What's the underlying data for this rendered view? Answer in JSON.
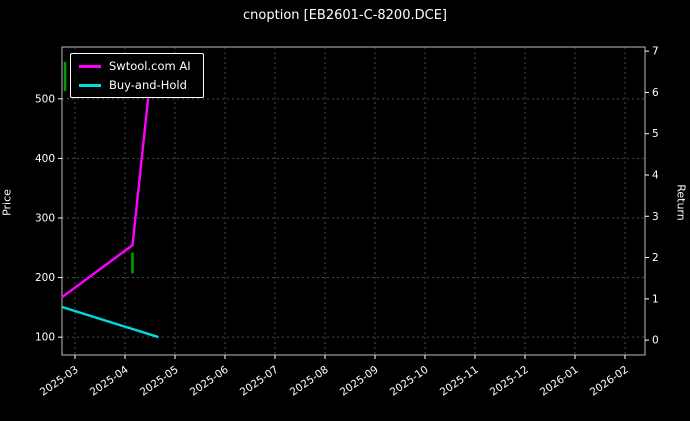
{
  "chart_data": {
    "type": "line",
    "title": "cnoption [EB2601-C-8200.DCE]",
    "ylabel_left": "Price",
    "ylabel_right": "Return",
    "x_tick_labels": [
      "2025-03",
      "2025-04",
      "2025-05",
      "2025-06",
      "2025-07",
      "2025-08",
      "2025-09",
      "2025-10",
      "2025-11",
      "2025-12",
      "2026-01",
      "2026-02"
    ],
    "xlim": [
      -0.26,
      11.4
    ],
    "price_ticks": [
      100,
      200,
      300,
      400,
      500
    ],
    "price_ylim": [
      70,
      587
    ],
    "return_ticks": [
      0,
      1,
      2,
      3,
      4,
      5,
      6,
      7
    ],
    "return_ylim": [
      -0.36,
      7.1
    ],
    "grid_color": "#4a4a4a",
    "series": [
      {
        "name": "Swtool.com AI",
        "color": "#ff00ff",
        "axis": "return",
        "x": [
          -0.25,
          1.15,
          1.55
        ],
        "y": [
          1.05,
          2.3,
          6.85
        ]
      },
      {
        "name": "Buy-and-Hold",
        "color": "#00dddd",
        "axis": "return",
        "x": [
          -0.25,
          1.65
        ],
        "y": [
          0.8,
          0.08
        ]
      }
    ],
    "price_bars": [
      {
        "x": -0.2,
        "low": 513,
        "high": 562,
        "color": "#00a000"
      },
      {
        "x": 1.15,
        "low": 207,
        "high": 242,
        "color": "#00a000"
      }
    ],
    "legend": {
      "position": "upper-left"
    }
  }
}
